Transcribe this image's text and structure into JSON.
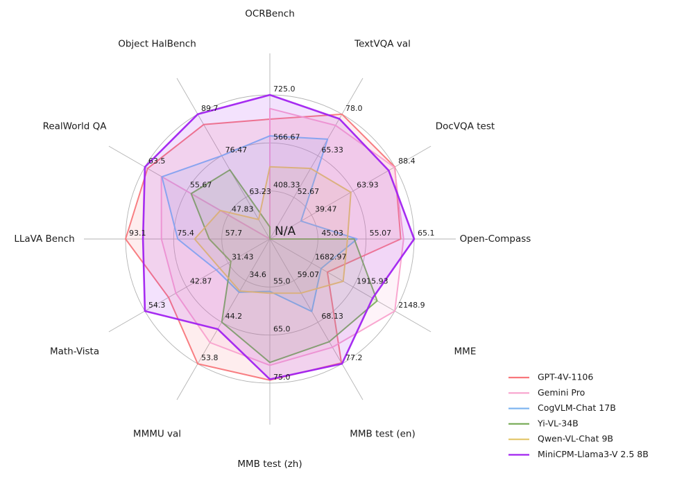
{
  "figure": {
    "background": "#ffffff",
    "grid_color": "#b3b3b3",
    "center_tick_label": "N/A"
  },
  "chart_data": {
    "type": "radar",
    "num_axes": 12,
    "rings": 3,
    "grid": true,
    "legend_position": "lower right",
    "na_policy": "N/A values are plotted at the chart center",
    "center_tick_label": "N/A",
    "axes": [
      {
        "label": "OCRBench",
        "min": 250,
        "max": 725,
        "ticks": [
          "408.33",
          "566.67",
          "725.0"
        ],
        "tick_values": [
          408.33,
          566.67,
          725.0
        ]
      },
      {
        "label": "TextVQA val",
        "min": 40,
        "max": 78,
        "ticks": [
          "52.67",
          "65.33",
          "78.0"
        ],
        "tick_values": [
          52.67,
          65.33,
          78.0
        ]
      },
      {
        "label": "DocVQA test",
        "min": 15,
        "max": 88.4,
        "ticks": [
          "39.47",
          "63.93",
          "88.4"
        ],
        "tick_values": [
          39.47,
          63.93,
          88.4
        ]
      },
      {
        "label": "Open-Compass",
        "min": 35,
        "max": 65.1,
        "ticks": [
          "45.03",
          "55.07",
          "65.1"
        ],
        "tick_values": [
          45.03,
          55.07,
          65.1
        ]
      },
      {
        "label": "MME",
        "min": 1450,
        "max": 2148.9,
        "ticks": [
          "1682.97",
          "1915.93",
          "2148.9"
        ],
        "tick_values": [
          1682.97,
          1915.93,
          2148.9
        ]
      },
      {
        "label": "MMB test (en)",
        "min": 50,
        "max": 77.2,
        "ticks": [
          "59.07",
          "68.13",
          "77.2"
        ],
        "tick_values": [
          59.07,
          68.13,
          77.2
        ]
      },
      {
        "label": "MMB test (zh)",
        "min": 45,
        "max": 75,
        "ticks": [
          "55.0",
          "65.0",
          "75.0"
        ],
        "tick_values": [
          55.0,
          65.0,
          75.0
        ]
      },
      {
        "label": "MMMU val",
        "min": 25,
        "max": 53.8,
        "ticks": [
          "34.6",
          "44.2",
          "53.8"
        ],
        "tick_values": [
          34.6,
          44.2,
          53.8
        ]
      },
      {
        "label": "Math-Vista",
        "min": 20,
        "max": 54.3,
        "ticks": [
          "31.43",
          "42.87",
          "54.3"
        ],
        "tick_values": [
          31.43,
          42.87,
          54.3
        ]
      },
      {
        "label": "LLaVA Bench",
        "min": 40,
        "max": 93.1,
        "ticks": [
          "57.7",
          "75.4",
          "93.1"
        ],
        "tick_values": [
          57.7,
          75.4,
          93.1
        ]
      },
      {
        "label": "RealWorld QA",
        "min": 40,
        "max": 63.5,
        "ticks": [
          "47.83",
          "55.67",
          "63.5"
        ],
        "tick_values": [
          47.83,
          55.67,
          63.5
        ]
      },
      {
        "label": "Object HalBench",
        "min": 50,
        "max": 89.7,
        "ticks": [
          "63.23",
          "76.47",
          "89.7"
        ],
        "tick_values": [
          63.23,
          76.47,
          89.7
        ]
      }
    ],
    "series": [
      {
        "name": "GPT-4V-1106",
        "color": "#F8777B",
        "line_width": 2,
        "values": [
          645,
          78.0,
          88.4,
          62.3,
          1771.5,
          77.0,
          74.4,
          53.8,
          47.8,
          93.1,
          63.0,
          86.4
        ]
      },
      {
        "name": "Gemini Pro",
        "color": "#F9A2CD",
        "line_width": 2,
        "values": [
          680,
          74.6,
          88.1,
          62.9,
          2148.9,
          73.6,
          71.3,
          48.9,
          45.8,
          79.9,
          60.4,
          null
        ]
      },
      {
        "name": "CogVLM-Chat 17B",
        "color": "#7FB5F0",
        "line_width": 2,
        "values": [
          590,
          70.4,
          33.3,
          53.2,
          1736.6,
          65.8,
          55.9,
          37.3,
          34.7,
          73.9,
          60.3,
          76.5
        ]
      },
      {
        "name": "Yi-VL-34B",
        "color": "#7CAE5C",
        "line_width": 2,
        "values": [
          290,
          null,
          null,
          52.6,
          2050.2,
          72.4,
          70.7,
          44.2,
          30.7,
          62.3,
          54.8,
          72.0
        ]
      },
      {
        "name": "Qwen-VL-Chat 9B",
        "color": "#E3C567",
        "line_width": 2,
        "values": [
          488,
          61.5,
          62.6,
          51.2,
          1860.0,
          61.8,
          56.3,
          37.0,
          33.8,
          67.7,
          49.3,
          56.2
        ]
      },
      {
        "name": "MiniCPM-Llama3-V 2.5 8B",
        "color": "#A122F0",
        "line_width": 2.6,
        "values": [
          725,
          76.6,
          84.8,
          65.1,
          2024.6,
          77.2,
          74.2,
          45.8,
          54.3,
          86.7,
          63.5,
          89.7
        ]
      }
    ]
  }
}
